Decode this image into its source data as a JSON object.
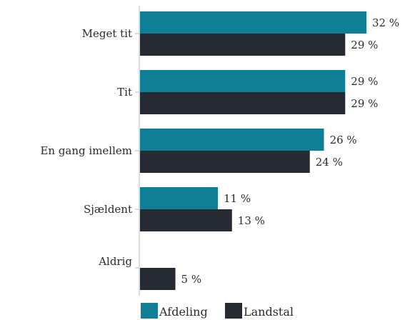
{
  "chart_data": {
    "type": "bar",
    "orientation": "horizontal",
    "categories": [
      "Meget tit",
      "Tit",
      "En gang imellem",
      "Sjældent",
      "Aldrig"
    ],
    "series": [
      {
        "name": "Afdeling",
        "color": "#0f7f96",
        "values": [
          32,
          29,
          26,
          11,
          0
        ],
        "labels": [
          "32 %",
          "29 %",
          "26 %",
          "11 %",
          ""
        ]
      },
      {
        "name": "Landstal",
        "color": "#262a33",
        "values": [
          29,
          29,
          24,
          13,
          5
        ],
        "labels": [
          "29 %",
          "29 %",
          "24 %",
          "13 %",
          "5 %"
        ]
      }
    ],
    "xlim": [
      0,
      34
    ],
    "legend_position": "bottom",
    "grid": false,
    "title": "",
    "xlabel": "",
    "ylabel": ""
  }
}
